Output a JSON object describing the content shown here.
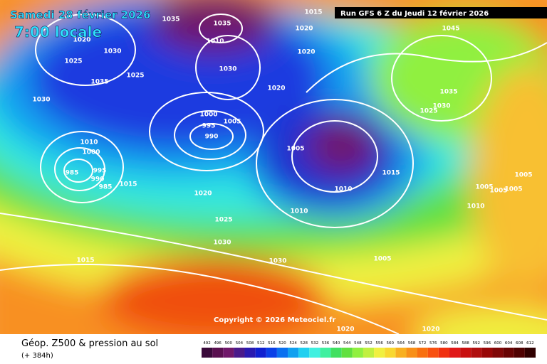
{
  "header": {
    "date": "Samedi 28 février 2026",
    "time": "7:00 locale",
    "run": "Run GFS 6 Z du Jeudi 12 février 2026"
  },
  "copyright": "Copyright © 2026 Meteociel.fr",
  "footer": {
    "title": "Géop. Z500 & pression au sol",
    "lead": "(+ 384h)"
  },
  "legend": {
    "values": [
      492,
      496,
      500,
      504,
      508,
      512,
      516,
      520,
      524,
      528,
      532,
      536,
      540,
      544,
      548,
      552,
      556,
      560,
      564,
      568,
      572,
      576,
      580,
      584,
      588,
      592,
      596,
      600,
      604,
      608,
      612
    ],
    "colors": [
      "#3a0a3a",
      "#5a1050",
      "#70186a",
      "#4a1a8a",
      "#2a1ab0",
      "#1020d0",
      "#0a40e8",
      "#0a70f0",
      "#10a0f0",
      "#20d0f0",
      "#40f0e0",
      "#40f0a0",
      "#40e060",
      "#60e040",
      "#90f040",
      "#c0f040",
      "#f0f040",
      "#f8d830",
      "#f8b020",
      "#f89018",
      "#f87010",
      "#f85010",
      "#f03010",
      "#e01818",
      "#c81010",
      "#b01010",
      "#980808",
      "#800808",
      "#680404",
      "#500202",
      "#300000"
    ]
  },
  "isobars": [
    "1035",
    "1035",
    "1015",
    "1020",
    "1045",
    "1020",
    "1030",
    "1010",
    "1025",
    "1020",
    "1030",
    "1035",
    "1025",
    "1020",
    "1035",
    "1030",
    "1030",
    "1025",
    "1000",
    "995",
    "1005",
    "990",
    "1010",
    "1005",
    "1000",
    "995",
    "985",
    "990",
    "985",
    "1015",
    "1015",
    "1005",
    "1020",
    "1010",
    "1005",
    "1005",
    "1005",
    "1010",
    "1010",
    "1025",
    "1030",
    "1005",
    "1015",
    "1030",
    "1020",
    "1020"
  ]
}
